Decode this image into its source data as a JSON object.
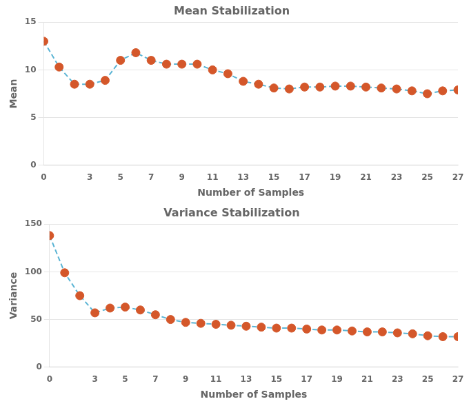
{
  "chart_data": [
    {
      "type": "line",
      "title": "Mean Stabilization",
      "x_label": "Number of Samples",
      "y_label": "Mean",
      "x": [
        0,
        1,
        2,
        3,
        4,
        5,
        6,
        7,
        8,
        9,
        10,
        11,
        12,
        13,
        14,
        15,
        16,
        17,
        18,
        19,
        20,
        21,
        22,
        23,
        24,
        25,
        26,
        27
      ],
      "series": [
        {
          "type": "line",
          "color": "#5ab4d4",
          "line_style": "dashed",
          "values": [
            13.0,
            10.3,
            8.5,
            8.5,
            8.9,
            11.0,
            11.8,
            11.0,
            10.6,
            10.6,
            10.6,
            10.0,
            9.6,
            8.8,
            8.5,
            8.1,
            8.0,
            8.2,
            8.2,
            8.3,
            8.3,
            8.2,
            8.1,
            8.0,
            7.8,
            7.5,
            7.8,
            7.9
          ]
        },
        {
          "type": "scatter",
          "color": "#d4572a",
          "marker": "circle",
          "values": [
            13.0,
            10.3,
            8.5,
            8.5,
            8.9,
            11.0,
            11.8,
            11.0,
            10.6,
            10.6,
            10.6,
            10.0,
            9.6,
            8.8,
            8.5,
            8.1,
            8.0,
            8.2,
            8.2,
            8.3,
            8.3,
            8.2,
            8.1,
            8.0,
            7.8,
            7.5,
            7.8,
            7.9
          ]
        }
      ],
      "xlim": [
        0,
        27
      ],
      "xticks": [
        0,
        3,
        5,
        7,
        9,
        11,
        13,
        15,
        17,
        19,
        21,
        23,
        25,
        27
      ],
      "ylim": [
        0,
        15
      ],
      "yticks": [
        0,
        5,
        10,
        15
      ],
      "grid": "y"
    },
    {
      "type": "line",
      "title": "Variance Stabilization",
      "x_label": "Number of Samples",
      "y_label": "Variance",
      "x": [
        0,
        1,
        2,
        3,
        4,
        5,
        6,
        7,
        8,
        9,
        10,
        11,
        12,
        13,
        14,
        15,
        16,
        17,
        18,
        19,
        20,
        21,
        22,
        23,
        24,
        25,
        26,
        27
      ],
      "series": [
        {
          "type": "line",
          "color": "#5ab4d4",
          "line_style": "dashed",
          "values": [
            138,
            99,
            75,
            57,
            62,
            63,
            60,
            55,
            50,
            47,
            46,
            45,
            44,
            43,
            42,
            41,
            41,
            40,
            39,
            39,
            38,
            37,
            37,
            36,
            35,
            33,
            32,
            32
          ]
        },
        {
          "type": "scatter",
          "color": "#d4572a",
          "marker": "circle",
          "values": [
            138,
            99,
            75,
            57,
            62,
            63,
            60,
            55,
            50,
            47,
            46,
            45,
            44,
            43,
            42,
            41,
            41,
            40,
            39,
            39,
            38,
            37,
            37,
            36,
            35,
            33,
            32,
            32
          ]
        }
      ],
      "xlim": [
        0,
        27
      ],
      "xticks": [
        0,
        3,
        5,
        7,
        9,
        11,
        13,
        15,
        17,
        19,
        21,
        23,
        25,
        27
      ],
      "ylim": [
        0,
        150
      ],
      "yticks": [
        0,
        50,
        100,
        150
      ],
      "grid": "y"
    }
  ]
}
